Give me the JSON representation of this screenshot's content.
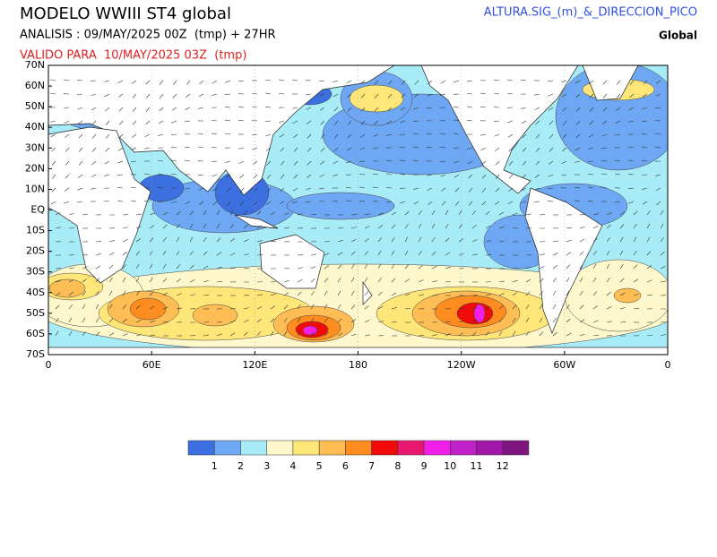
{
  "header": {
    "title": "MODELO WWIII ST4 global",
    "analysis": "ANALISIS : 09/MAY/2025 00Z  (tmp) + 27HR",
    "valid": "VALIDO PARA  10/MAY/2025 03Z  (tmp)",
    "variable": "ALTURA.SIG_(m)_&_DIRECCION_PICO",
    "region": "Global"
  },
  "map": {
    "lat_labels": [
      "70N",
      "60N",
      "50N",
      "40N",
      "30N",
      "20N",
      "10N",
      "EQ",
      "10S",
      "20S",
      "30S",
      "40S",
      "50S",
      "60S",
      "70S"
    ],
    "lon_labels": [
      "0",
      "60E",
      "120E",
      "180",
      "120W",
      "60W",
      "0"
    ]
  },
  "legend": {
    "colors": [
      "#3c70e0",
      "#6ea8f5",
      "#a8ecf8",
      "#fff8cc",
      "#ffe678",
      "#ffbe55",
      "#ff8c1e",
      "#f00a0a",
      "#e8186e",
      "#f020e8",
      "#c020c8",
      "#a018a8",
      "#7e1480"
    ],
    "labels": [
      1,
      2,
      3,
      4,
      5,
      6,
      7,
      8,
      9,
      10,
      11,
      12
    ]
  }
}
